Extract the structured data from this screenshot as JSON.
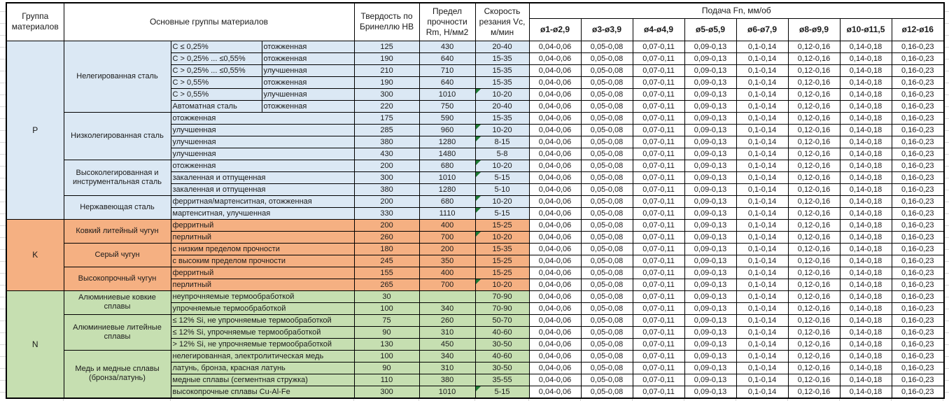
{
  "header": {
    "col_group": "Группа материалов",
    "col_materials": "Основные группы материалов",
    "col_hardness": "Твердость по Бринеллю HB",
    "col_strength": "Предел прочности Rm, Н/мм2",
    "col_speed": "Скорость резания Vc, м/мин",
    "col_feed": "Подача Fn, мм/об",
    "feed_columns": [
      "ø1-ø2,9",
      "ø3-ø3,9",
      "ø4-ø4,9",
      "ø5-ø5,9",
      "ø6-ø7,9",
      "ø8-ø9,9",
      "ø10-ø11,5",
      "ø12-ø16"
    ]
  },
  "feed_values": [
    "0,04-0,06",
    "0,05-0,08",
    "0,07-0,11",
    "0,09-0,13",
    "0,1-0,14",
    "0,12-0,16",
    "0,14-0,18",
    "0,16-0,23"
  ],
  "colors": {
    "group_p": "#dbe8f4",
    "group_k": "#f5b082",
    "group_n": "#c6dfb1",
    "marker_green": "#1e7b34"
  },
  "groups": [
    {
      "letter": "P",
      "color_key": "group_p",
      "subgroups": [
        {
          "name": "Нелегированная сталь",
          "rows": [
            {
              "c": "C ≤ 0,25%",
              "state": "отожженная",
              "hb": "125",
              "rm": "430",
              "vc": "20-40",
              "marker": false
            },
            {
              "c": "C > 0,25% ... ≤0,55%",
              "state": "отожженная",
              "hb": "190",
              "rm": "640",
              "vc": "15-35",
              "marker": false
            },
            {
              "c": "C > 0,25% ... ≤0,55%",
              "state": "улучшенная",
              "hb": "210",
              "rm": "710",
              "vc": "15-35",
              "marker": false
            },
            {
              "c": "C > 0,55%",
              "state": "отожженная",
              "hb": "190",
              "rm": "640",
              "vc": "15-35",
              "marker": false
            },
            {
              "c": "C > 0,55%",
              "state": "улучшенная",
              "hb": "300",
              "rm": "1010",
              "vc": "10-20",
              "marker": true
            },
            {
              "c": "Автоматная сталь",
              "state": "отожженная",
              "hb": "220",
              "rm": "750",
              "vc": "20-40",
              "marker": false
            }
          ]
        },
        {
          "name": "Низколегированная сталь",
          "rows": [
            {
              "desc": "отожженная",
              "hb": "175",
              "rm": "590",
              "vc": "15-35",
              "marker": false
            },
            {
              "desc": "улучшенная",
              "hb": "285",
              "rm": "960",
              "vc": "10-20",
              "marker": true
            },
            {
              "desc": "улучшенная",
              "hb": "380",
              "rm": "1280",
              "vc": "8-15",
              "marker": true
            },
            {
              "desc": "улучшенная",
              "hb": "430",
              "rm": "1480",
              "vc": "5-8",
              "marker": false
            }
          ]
        },
        {
          "name": "Высоколегированная и инструментальная сталь",
          "rows": [
            {
              "desc": "отожженная",
              "hb": "200",
              "rm": "680",
              "vc": "10-20",
              "marker": true
            },
            {
              "desc": "закаленная и отпущенная",
              "hb": "300",
              "rm": "1010",
              "vc": "5-15",
              "marker": true
            },
            {
              "desc": "закаленная и отпущенная",
              "hb": "380",
              "rm": "1280",
              "vc": "5-10",
              "marker": false
            }
          ]
        },
        {
          "name": "Нержавеющая сталь",
          "rows": [
            {
              "desc": "ферритная/мартенситная, отожженная",
              "hb": "200",
              "rm": "680",
              "vc": "10-20",
              "marker": true
            },
            {
              "desc": "мартенситная, улучшенная",
              "hb": "330",
              "rm": "1110",
              "vc": "5-15",
              "marker": true
            }
          ]
        }
      ]
    },
    {
      "letter": "K",
      "color_key": "group_k",
      "subgroups": [
        {
          "name": "Ковкий литейный чугун",
          "rows": [
            {
              "desc": "ферритный",
              "hb": "200",
              "rm": "400",
              "vc": "15-25",
              "marker": false
            },
            {
              "desc": "перлитный",
              "hb": "260",
              "rm": "700",
              "vc": "10-20",
              "marker": true
            }
          ]
        },
        {
          "name": "Серый чугун",
          "rows": [
            {
              "desc": "с низким пределом прочности",
              "hb": "180",
              "rm": "200",
              "vc": "15-35",
              "marker": false
            },
            {
              "desc": "с высоким пределом прочности",
              "hb": "245",
              "rm": "350",
              "vc": "15-25",
              "marker": false
            }
          ]
        },
        {
          "name": "Высокопрочный чугун",
          "rows": [
            {
              "desc": "ферритный",
              "hb": "155",
              "rm": "400",
              "vc": "15-25",
              "marker": false
            },
            {
              "desc": "перлитный",
              "hb": "265",
              "rm": "700",
              "vc": "10-20",
              "marker": true
            }
          ]
        }
      ]
    },
    {
      "letter": "N",
      "color_key": "group_n",
      "subgroups": [
        {
          "name": "Алюминиевые ковкие сплавы",
          "rows": [
            {
              "desc": "неупрочняемые термообработкой",
              "hb": "30",
              "rm": "",
              "vc": "70-90",
              "marker": false
            },
            {
              "desc": "упрочняемые термообработкой",
              "hb": "100",
              "rm": "340",
              "vc": "70-90",
              "marker": false
            }
          ]
        },
        {
          "name": "Алюминиевые литейные сплавы",
          "rows": [
            {
              "desc": "≤ 12% Si, не упрочняемые термообработкой",
              "hb": "75",
              "rm": "260",
              "vc": "50-70",
              "marker": false
            },
            {
              "desc": "≤ 12% Si, упрочняемые термообработкой",
              "hb": "90",
              "rm": "310",
              "vc": "40-60",
              "marker": false
            },
            {
              "desc": "> 12% Si, не упрочняемые термообработкой",
              "hb": "130",
              "rm": "450",
              "vc": "30-50",
              "marker": false
            }
          ]
        },
        {
          "name": "Медь и медные сплавы (бронза/латунь)",
          "rows": [
            {
              "desc": "нелегированная, электролитическая медь",
              "hb": "100",
              "rm": "340",
              "vc": "40-60",
              "marker": false
            },
            {
              "desc": "латунь, бронза, красная латунь",
              "hb": "90",
              "rm": "310",
              "vc": "30-50",
              "marker": false
            },
            {
              "desc": "медные сплавы (сегментная стружка)",
              "hb": "110",
              "rm": "380",
              "vc": "35-55",
              "marker": false
            },
            {
              "desc": "высокопрочные сплавы Cu-Al-Fe",
              "hb": "300",
              "rm": "1010",
              "vc": "5-15",
              "marker": true
            }
          ]
        }
      ]
    }
  ]
}
